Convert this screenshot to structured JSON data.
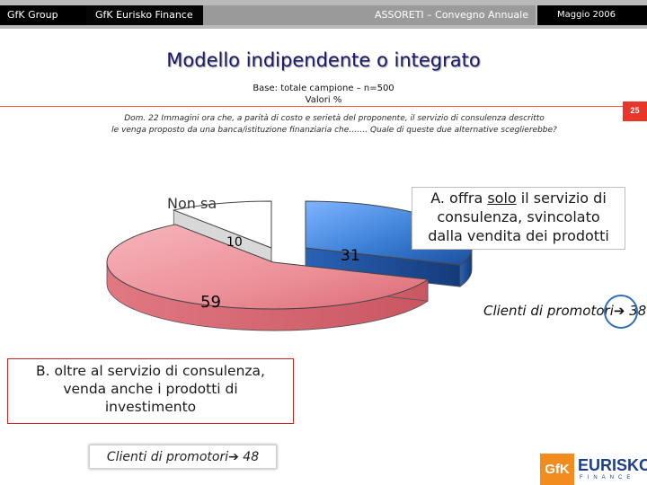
{
  "header": {
    "brand": "GfK Group",
    "division": "GfK Eurisko Finance",
    "event": "ASSORETI – Convegno Annuale",
    "date": "Maggio   2006"
  },
  "slide": {
    "title": "Modello indipendente o integrato",
    "base_line1": "Base: totale campione – n=500",
    "base_line2": "Valori %",
    "page_number": "25",
    "question_line1": "Dom. 22 Immagini ora che, a parità di costo e serietà del proponente, il servizio di consulenza descritto",
    "question_line2": "le venga proposto da una banca/istituzione finanziaria che……. Quale di queste due alternative sceglierebbe?"
  },
  "option_a": {
    "line1_pre": "A. offra ",
    "line1_underlined": "solo",
    "line1_post": " il servizio di",
    "line2": "consulenza, svincolato",
    "line3": "dalla vendita dei prodotti",
    "clienti_label": "Clienti di promotori",
    "clienti_value": "38"
  },
  "option_b": {
    "line1": "B. oltre al servizio di consulenza,",
    "line2": "venda anche i prodotti di",
    "line3": "investimento",
    "clienti_label": "Clienti di promotori",
    "clienti_value": "48"
  },
  "chart_data": {
    "type": "pie",
    "style": "3d-exploded",
    "slices": [
      {
        "label": "A. offra solo il servizio di consulenza, svincolato dalla vendita dei prodotti",
        "value": 31,
        "value_label": "31",
        "color": "#3a7fd5"
      },
      {
        "label": "B. oltre al servizio di consulenza, venda anche i prodotti di investimento",
        "value": 59,
        "value_label": "59",
        "color": "#ec8f97"
      },
      {
        "label": "Non sa",
        "value": 10,
        "value_label": "10",
        "color": "#ffffff"
      }
    ]
  },
  "logo": {
    "mark": "GfK",
    "name": "EURISKO",
    "sub": "FINANCE"
  },
  "colors": {
    "accent_red": "#e8362b",
    "title_navy": "#1a1a6a",
    "slice_a": "#3a7fd5",
    "slice_b": "#ec8f97"
  }
}
